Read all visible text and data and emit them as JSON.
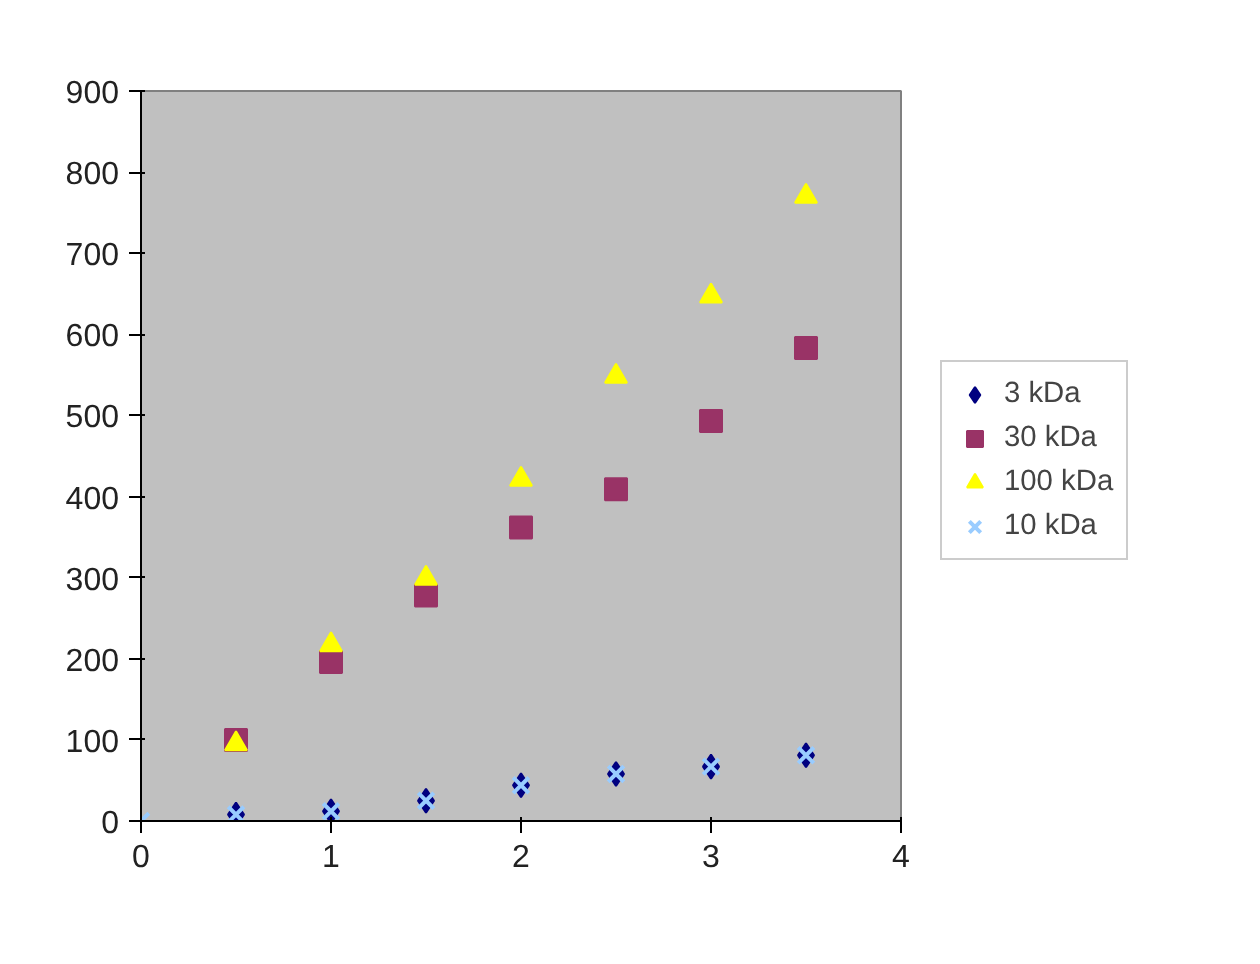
{
  "chart_data": {
    "type": "scatter",
    "x": [
      0,
      0.5,
      1,
      1.5,
      2,
      2.5,
      3,
      3.5
    ],
    "xlim": [
      0,
      4
    ],
    "xticks": [
      0,
      1,
      2,
      3,
      4
    ],
    "ylim": [
      0,
      900
    ],
    "yticks": [
      0,
      100,
      200,
      300,
      400,
      500,
      600,
      700,
      800,
      900
    ],
    "grid": false,
    "legend": "right",
    "series": [
      {
        "name": "3 kDa",
        "color": "#000080",
        "marker": "diamond",
        "values": [
          null,
          8,
          12,
          25,
          44,
          58,
          67,
          81
        ]
      },
      {
        "name": "30 kDa",
        "color": "#993366",
        "marker": "square",
        "values": [
          null,
          100,
          196,
          278,
          362,
          409,
          493,
          583
        ]
      },
      {
        "name": "100 kDa",
        "color": "#ffff00",
        "marker": "triangle",
        "values": [
          null,
          95,
          217,
          299,
          421,
          548,
          647,
          770
        ]
      },
      {
        "name": "10 kDa",
        "color": "#99ccff",
        "marker": "cross",
        "values": [
          0,
          8,
          12,
          25,
          44,
          58,
          67,
          81
        ]
      }
    ]
  }
}
